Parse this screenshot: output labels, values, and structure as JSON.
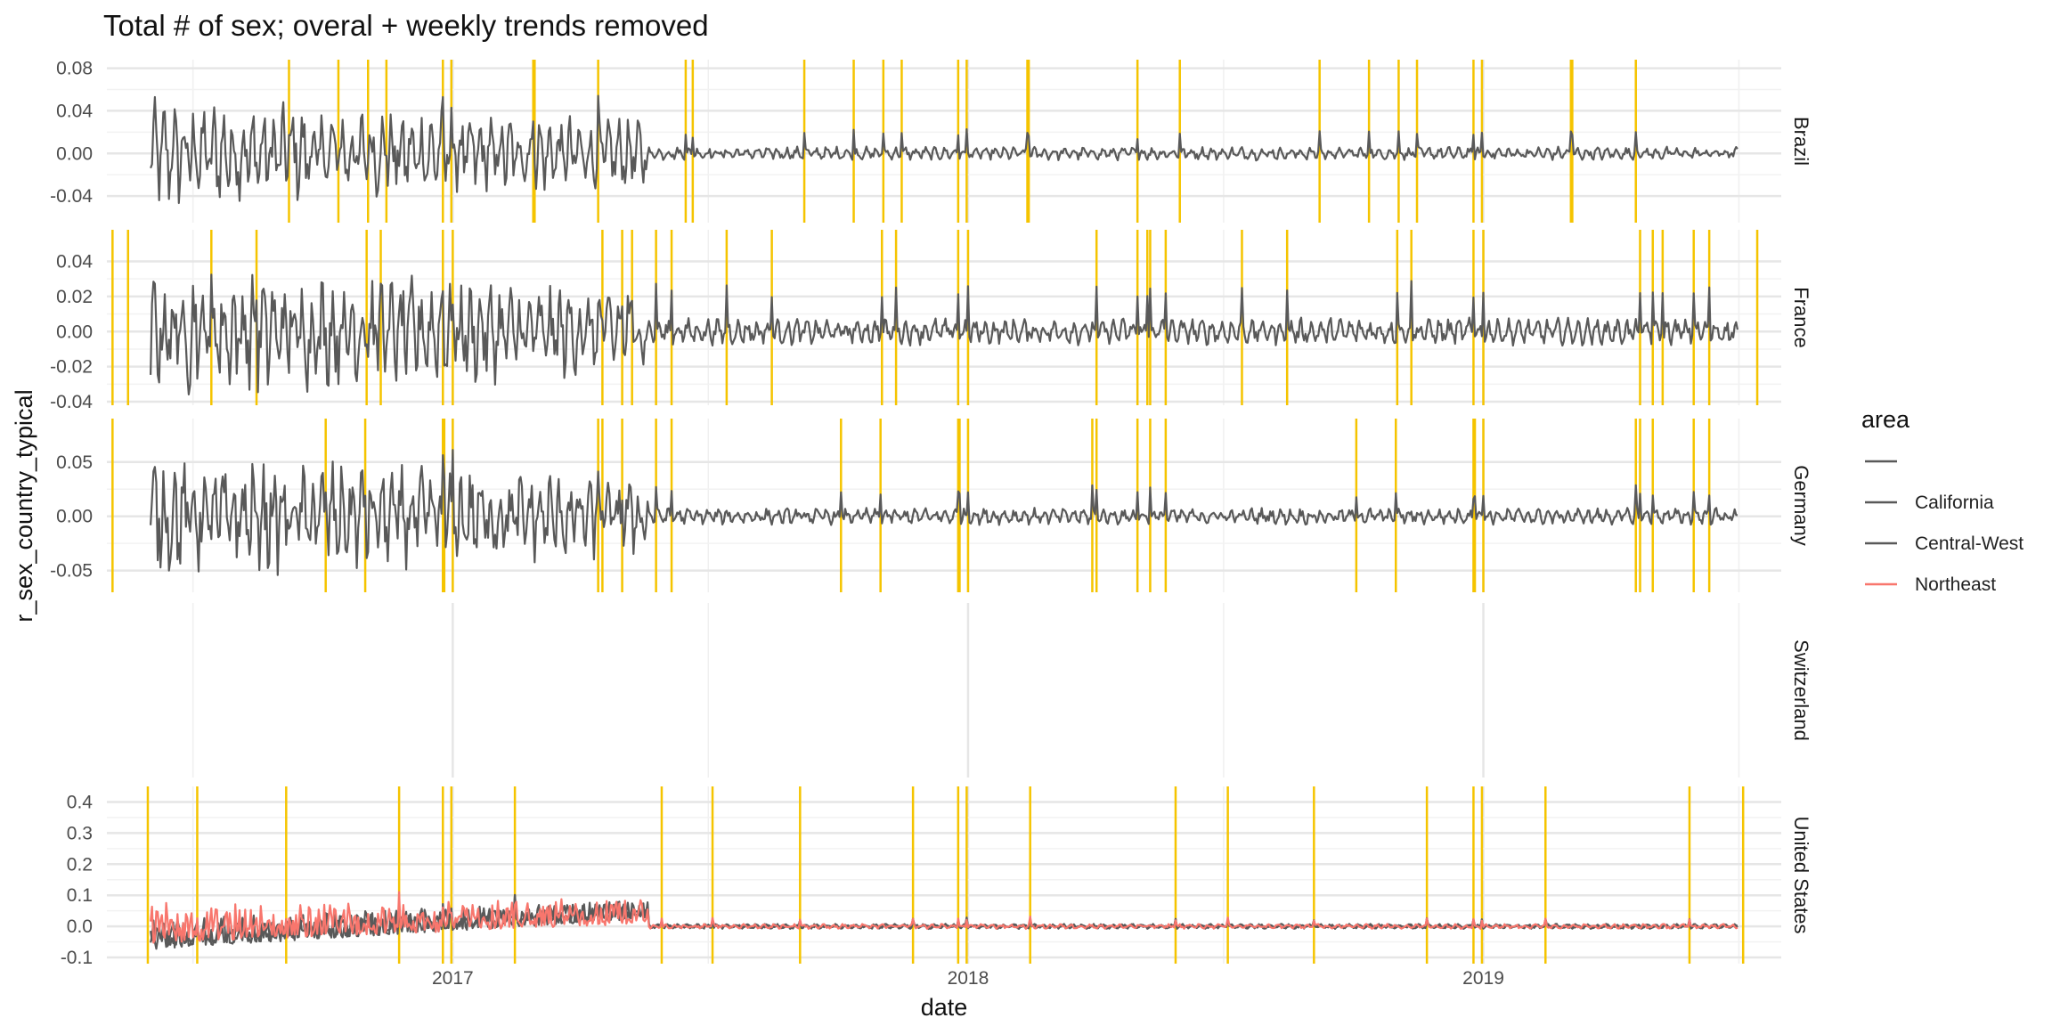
{
  "chart_data": {
    "type": "line",
    "title": "Total # of sex; overal + weekly trends removed",
    "xlabel": "date",
    "ylabel": "r_sex_country_typical",
    "xlim": [
      "2016-05-01",
      "2019-07-31"
    ],
    "x_ticks": [
      "2017",
      "2018",
      "2019"
    ],
    "x_tick_dates": [
      "2017-01-01",
      "2018-01-01",
      "2019-01-01"
    ],
    "data_start": "2016-06-01",
    "data_end": "2019-06-30",
    "grid": true,
    "legend": {
      "title": "area",
      "position": "right",
      "entries": [
        {
          "label": "",
          "color": "#595959"
        },
        {
          "label": "California",
          "color": "#595959"
        },
        {
          "label": "Central-West",
          "color": "#595959"
        },
        {
          "label": "Northeast",
          "color": "#f8766d"
        }
      ]
    },
    "colors": {
      "series": "#595959",
      "northeast": "#f8766d",
      "event_line": "#f5c400",
      "grid": "#ebebeb"
    },
    "facets": [
      {
        "name": "Brazil",
        "ylim": [
          -0.065,
          0.088
        ],
        "y_ticks": [
          0.08,
          0.04,
          0.0,
          -0.04
        ],
        "y_tick_labels": [
          "0.08",
          "0.04",
          "0.00",
          "-0.04"
        ],
        "early_amplitude": 0.04,
        "late_amplitude": 0.005,
        "event_dates": [
          "2016-09-07",
          "2016-10-12",
          "2016-11-02",
          "2016-11-15",
          "2016-12-25",
          "2016-12-31",
          "2017-02-27",
          "2017-02-28",
          "2017-04-14",
          "2017-06-15",
          "2017-06-20",
          "2017-09-07",
          "2017-10-12",
          "2017-11-02",
          "2017-11-15",
          "2017-12-25",
          "2017-12-31",
          "2018-02-12",
          "2018-02-13",
          "2018-05-01",
          "2018-05-31",
          "2018-09-07",
          "2018-10-12",
          "2018-11-02",
          "2018-11-15",
          "2018-12-25",
          "2018-12-31",
          "2019-03-04",
          "2019-03-05",
          "2019-04-19"
        ],
        "series": [
          {
            "name": "",
            "color": "#595959"
          }
        ]
      },
      {
        "name": "France",
        "ylim": [
          -0.042,
          0.058
        ],
        "y_ticks": [
          0.04,
          0.02,
          0.0,
          -0.02,
          -0.04
        ],
        "y_tick_labels": [
          "0.04",
          "0.02",
          "0.00",
          "-0.02",
          "-0.04"
        ],
        "early_amplitude": 0.03,
        "late_amplitude": 0.006,
        "event_dates": [
          "2016-05-05",
          "2016-05-16",
          "2016-07-14",
          "2016-08-15",
          "2016-11-01",
          "2016-11-11",
          "2016-12-25",
          "2017-01-01",
          "2017-04-17",
          "2017-05-01",
          "2017-05-08",
          "2017-05-25",
          "2017-06-05",
          "2017-07-14",
          "2017-08-15",
          "2017-11-01",
          "2017-11-11",
          "2017-12-25",
          "2018-01-01",
          "2018-04-02",
          "2018-05-01",
          "2018-05-08",
          "2018-05-10",
          "2018-05-21",
          "2018-07-14",
          "2018-08-15",
          "2018-11-01",
          "2018-11-11",
          "2018-12-25",
          "2019-01-01",
          "2019-04-22",
          "2019-05-01",
          "2019-05-08",
          "2019-05-30",
          "2019-06-10",
          "2019-07-14"
        ],
        "series": [
          {
            "name": "",
            "color": "#595959"
          }
        ]
      },
      {
        "name": "Germany",
        "ylim": [
          -0.07,
          0.09
        ],
        "y_ticks": [
          0.05,
          0.0,
          -0.05
        ],
        "y_tick_labels": [
          "0.05",
          "0.00",
          "-0.05"
        ],
        "early_amplitude": 0.045,
        "late_amplitude": 0.006,
        "event_dates": [
          "2016-05-05",
          "2016-10-03",
          "2016-10-31",
          "2016-12-25",
          "2016-12-26",
          "2017-01-01",
          "2017-04-14",
          "2017-04-17",
          "2017-05-01",
          "2017-05-25",
          "2017-06-05",
          "2017-10-03",
          "2017-10-31",
          "2017-12-25",
          "2017-12-26",
          "2018-01-01",
          "2018-03-30",
          "2018-04-02",
          "2018-05-01",
          "2018-05-10",
          "2018-05-21",
          "2018-10-03",
          "2018-10-31",
          "2018-12-25",
          "2018-12-26",
          "2019-01-01",
          "2019-04-19",
          "2019-04-22",
          "2019-05-01",
          "2019-05-30",
          "2019-06-10"
        ],
        "series": [
          {
            "name": "",
            "color": "#595959"
          }
        ]
      },
      {
        "name": "Switzerland",
        "ylim": [
          -1,
          1
        ],
        "y_ticks": [],
        "y_tick_labels": [],
        "event_dates": [],
        "series": []
      },
      {
        "name": "United States",
        "ylim": [
          -0.12,
          0.45
        ],
        "y_ticks": [
          0.4,
          0.3,
          0.2,
          0.1,
          0.0,
          -0.1
        ],
        "y_tick_labels": [
          "0.4",
          "0.3",
          "0.2",
          "0.1",
          "0.0",
          "-0.1"
        ],
        "early_amplitude": 0.08,
        "late_amplitude": 0.006,
        "event_dates": [
          "2016-05-30",
          "2016-07-04",
          "2016-09-05",
          "2016-11-24",
          "2016-12-25",
          "2016-12-31",
          "2017-02-14",
          "2017-05-29",
          "2017-07-04",
          "2017-09-04",
          "2017-11-23",
          "2017-12-25",
          "2017-12-31",
          "2018-02-14",
          "2018-05-28",
          "2018-07-04",
          "2018-09-03",
          "2018-11-22",
          "2018-12-25",
          "2018-12-31",
          "2019-02-14",
          "2019-05-27",
          "2019-07-04"
        ],
        "series": [
          {
            "name": "California",
            "color": "#595959"
          },
          {
            "name": "Central-West",
            "color": "#595959"
          },
          {
            "name": "Northeast",
            "color": "#f8766d"
          }
        ]
      }
    ]
  }
}
